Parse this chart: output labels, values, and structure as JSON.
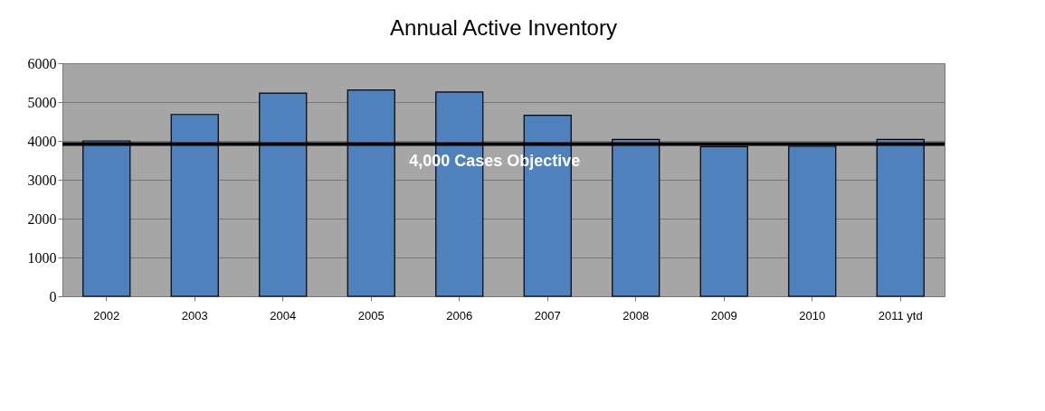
{
  "chart_data": {
    "type": "bar",
    "title": "Annual Active Inventory",
    "categories": [
      "2002",
      "2003",
      "2004",
      "2005",
      "2006",
      "2007",
      "2008",
      "2009",
      "2010",
      "2011 ytd"
    ],
    "values": [
      4000,
      4680,
      5230,
      5310,
      5260,
      4660,
      4040,
      3850,
      3860,
      4040
    ],
    "color": "#4f81bd",
    "ylim": [
      0,
      6000
    ],
    "yticks": [
      0,
      1000,
      2000,
      3000,
      4000,
      5000,
      6000
    ],
    "grid": "y",
    "ref_lines": [
      {
        "axis": "y",
        "value": 3920,
        "label": "4,000 Cases Objective",
        "color": "#000000"
      }
    ]
  }
}
